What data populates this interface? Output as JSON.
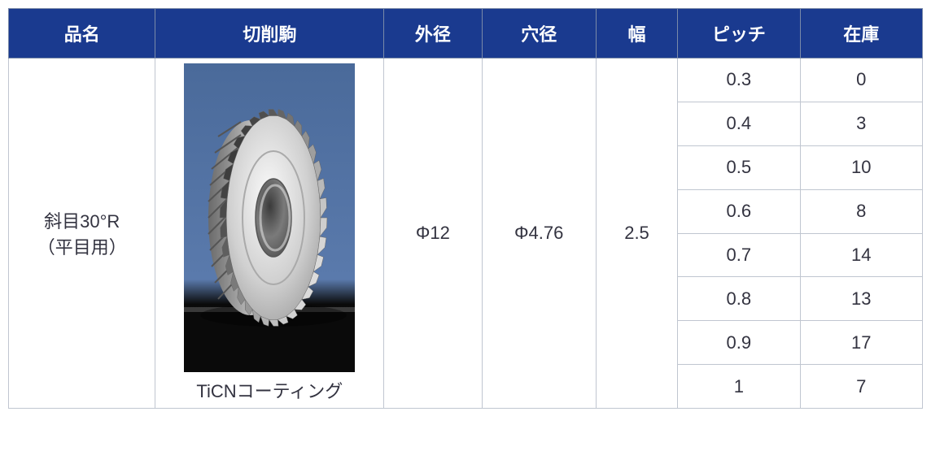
{
  "headers": {
    "name": "品名",
    "image": "切削駒",
    "outer": "外径",
    "hole": "穴径",
    "width": "幅",
    "pitch": "ピッチ",
    "stock": "在庫"
  },
  "product": {
    "name_line1": "斜目30°R",
    "name_line2": "（平目用）",
    "caption": "TiCNコーティング",
    "outer": "Φ12",
    "hole": "Φ4.76",
    "width": "2.5"
  },
  "rows": [
    {
      "pitch": "0.3",
      "stock": "0"
    },
    {
      "pitch": "0.4",
      "stock": "3"
    },
    {
      "pitch": "0.5",
      "stock": "10"
    },
    {
      "pitch": "0.6",
      "stock": "8"
    },
    {
      "pitch": "0.7",
      "stock": "14"
    },
    {
      "pitch": "0.8",
      "stock": "13"
    },
    {
      "pitch": "0.9",
      "stock": "17"
    },
    {
      "pitch": "1",
      "stock": "7"
    }
  ],
  "colors": {
    "header_bg": "#1a3a8f",
    "header_fg": "#ffffff",
    "border_outer": "#7a8aa8",
    "border_inner": "#c0c6d0",
    "cell_bg": "#ffffff",
    "text": "#333340"
  },
  "image": {
    "bg_top": "#4a6a9a",
    "bg_bottom": "#0a0a0a",
    "gear_light": "#e8e8e8",
    "gear_mid": "#b8b8b8",
    "gear_dark": "#888888",
    "hole": "#6c6c6c"
  }
}
